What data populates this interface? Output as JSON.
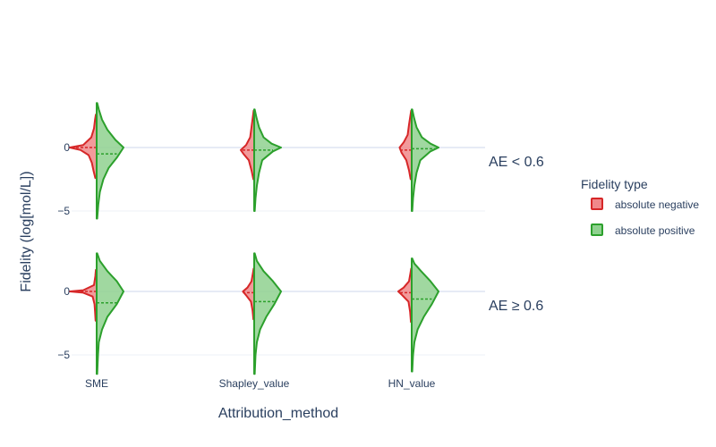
{
  "chart_data": {
    "type": "violin",
    "xlabel": "Attribution_method",
    "ylabel": "Fidelity (log[mol/L])",
    "categories": [
      "SME",
      "Shapley_value",
      "HN_value"
    ],
    "y_ticks": [
      {
        "value": 0,
        "label": "0"
      },
      {
        "value": -5,
        "label": "−5"
      }
    ],
    "facets": [
      {
        "label": "AE < 0.6",
        "ylim": [
          -5.5,
          3.5
        ]
      },
      {
        "label": "AE ≥ 0.6",
        "ylim": [
          -6.5,
          3.0
        ]
      }
    ],
    "grid": true,
    "legend": {
      "title": "Fidelity type",
      "position": "right",
      "items": [
        {
          "name": "absolute negative",
          "color": "#d62728",
          "fill": "#f0888a"
        },
        {
          "name": "absolute positive",
          "color": "#2ca02c",
          "fill": "#8fd18f"
        }
      ]
    },
    "series": [
      {
        "name": "absolute negative",
        "side": "negative",
        "color": "#d62728",
        "violins": [
          {
            "facet": 0,
            "category": "SME",
            "min": -2.4,
            "max": 2.6,
            "mean": 0.0,
            "density": [
              [
                -2.4,
                0.05
              ],
              [
                -1.8,
                0.12
              ],
              [
                -1.2,
                0.18
              ],
              [
                -0.6,
                0.3
              ],
              [
                -0.2,
                0.6
              ],
              [
                0,
                1.0
              ],
              [
                0.2,
                0.5
              ],
              [
                0.8,
                0.2
              ],
              [
                1.5,
                0.1
              ],
              [
                2.2,
                0.06
              ],
              [
                2.6,
                0.03
              ]
            ]
          },
          {
            "facet": 0,
            "category": "Shapley_value",
            "min": -2.5,
            "max": 2.9,
            "mean": -0.2,
            "density": [
              [
                -2.5,
                0.03
              ],
              [
                -1.8,
                0.1
              ],
              [
                -1.0,
                0.2
              ],
              [
                -0.5,
                0.4
              ],
              [
                -0.2,
                0.5
              ],
              [
                0.2,
                0.3
              ],
              [
                0.8,
                0.15
              ],
              [
                1.6,
                0.1
              ],
              [
                2.4,
                0.05
              ],
              [
                2.9,
                0.02
              ]
            ]
          },
          {
            "facet": 0,
            "category": "HN_value",
            "min": -2.5,
            "max": 2.9,
            "mean": -0.2,
            "density": [
              [
                -2.5,
                0.04
              ],
              [
                -1.8,
                0.1
              ],
              [
                -1.0,
                0.2
              ],
              [
                -0.4,
                0.38
              ],
              [
                0,
                0.45
              ],
              [
                0.4,
                0.3
              ],
              [
                1.0,
                0.15
              ],
              [
                1.8,
                0.1
              ],
              [
                2.5,
                0.05
              ],
              [
                2.9,
                0.02
              ]
            ]
          },
          {
            "facet": 1,
            "category": "SME",
            "min": -2.3,
            "max": 1.7,
            "mean": 0.0,
            "density": [
              [
                -2.3,
                0.04
              ],
              [
                -1.6,
                0.06
              ],
              [
                -1.0,
                0.08
              ],
              [
                -0.4,
                0.15
              ],
              [
                -0.1,
                0.5
              ],
              [
                0,
                1.0
              ],
              [
                0.1,
                0.5
              ],
              [
                0.5,
                0.1
              ],
              [
                1.2,
                0.05
              ],
              [
                1.7,
                0.03
              ]
            ]
          },
          {
            "facet": 1,
            "category": "Shapley_value",
            "min": -2.2,
            "max": 1.8,
            "mean": -0.1,
            "density": [
              [
                -2.2,
                0.03
              ],
              [
                -1.5,
                0.06
              ],
              [
                -0.8,
                0.12
              ],
              [
                -0.3,
                0.3
              ],
              [
                0,
                0.42
              ],
              [
                0.3,
                0.25
              ],
              [
                0.8,
                0.1
              ],
              [
                1.4,
                0.05
              ],
              [
                1.8,
                0.02
              ]
            ]
          },
          {
            "facet": 1,
            "category": "HN_value",
            "min": -2.4,
            "max": 1.8,
            "mean": -0.1,
            "density": [
              [
                -2.4,
                0.03
              ],
              [
                -1.6,
                0.06
              ],
              [
                -0.8,
                0.12
              ],
              [
                -0.3,
                0.35
              ],
              [
                0,
                0.5
              ],
              [
                0.3,
                0.3
              ],
              [
                0.8,
                0.1
              ],
              [
                1.4,
                0.05
              ],
              [
                1.8,
                0.02
              ]
            ]
          }
        ]
      },
      {
        "name": "absolute positive",
        "side": "positive",
        "color": "#2ca02c",
        "violins": [
          {
            "facet": 0,
            "category": "SME",
            "min": -5.6,
            "max": 3.5,
            "mean": -0.5,
            "density": [
              [
                -5.6,
                0.02
              ],
              [
                -4.5,
                0.06
              ],
              [
                -3.5,
                0.12
              ],
              [
                -2.5,
                0.25
              ],
              [
                -1.6,
                0.45
              ],
              [
                -0.8,
                0.75
              ],
              [
                0,
                1.0
              ],
              [
                0.6,
                0.7
              ],
              [
                1.4,
                0.4
              ],
              [
                2.2,
                0.2
              ],
              [
                3.0,
                0.08
              ],
              [
                3.5,
                0.02
              ]
            ]
          },
          {
            "facet": 0,
            "category": "Shapley_value",
            "min": -5.0,
            "max": 3.0,
            "mean": -0.2,
            "density": [
              [
                -5.0,
                0.02
              ],
              [
                -4.0,
                0.05
              ],
              [
                -3.0,
                0.1
              ],
              [
                -2.0,
                0.18
              ],
              [
                -1.0,
                0.3
              ],
              [
                -0.3,
                0.7
              ],
              [
                0,
                1.0
              ],
              [
                0.3,
                0.65
              ],
              [
                0.8,
                0.35
              ],
              [
                1.6,
                0.18
              ],
              [
                2.4,
                0.08
              ],
              [
                3.0,
                0.02
              ]
            ]
          },
          {
            "facet": 0,
            "category": "HN_value",
            "min": -5.0,
            "max": 3.0,
            "mean": -0.1,
            "density": [
              [
                -5.0,
                0.02
              ],
              [
                -4.0,
                0.05
              ],
              [
                -3.0,
                0.1
              ],
              [
                -2.0,
                0.18
              ],
              [
                -1.0,
                0.32
              ],
              [
                -0.3,
                0.7
              ],
              [
                0,
                1.0
              ],
              [
                0.3,
                0.7
              ],
              [
                0.8,
                0.38
              ],
              [
                1.6,
                0.18
              ],
              [
                2.4,
                0.08
              ],
              [
                3.0,
                0.02
              ]
            ]
          },
          {
            "facet": 1,
            "category": "SME",
            "min": -6.5,
            "max": 3.0,
            "mean": -0.9,
            "density": [
              [
                -6.5,
                0.02
              ],
              [
                -5.0,
                0.05
              ],
              [
                -4.0,
                0.08
              ],
              [
                -3.0,
                0.2
              ],
              [
                -2.0,
                0.4
              ],
              [
                -1.0,
                0.75
              ],
              [
                0,
                1.0
              ],
              [
                0.8,
                0.75
              ],
              [
                1.6,
                0.4
              ],
              [
                2.4,
                0.12
              ],
              [
                3.0,
                0.02
              ]
            ]
          },
          {
            "facet": 1,
            "category": "Shapley_value",
            "min": -6.5,
            "max": 3.0,
            "mean": -0.8,
            "density": [
              [
                -6.5,
                0.02
              ],
              [
                -5.0,
                0.05
              ],
              [
                -4.0,
                0.1
              ],
              [
                -3.0,
                0.22
              ],
              [
                -2.0,
                0.45
              ],
              [
                -1.0,
                0.75
              ],
              [
                0,
                1.0
              ],
              [
                0.8,
                0.7
              ],
              [
                1.6,
                0.35
              ],
              [
                2.4,
                0.1
              ],
              [
                3.0,
                0.02
              ]
            ]
          },
          {
            "facet": 1,
            "category": "HN_value",
            "min": -6.3,
            "max": 2.6,
            "mean": -0.6,
            "density": [
              [
                -6.3,
                0.02
              ],
              [
                -5.0,
                0.05
              ],
              [
                -4.0,
                0.1
              ],
              [
                -3.0,
                0.22
              ],
              [
                -2.0,
                0.45
              ],
              [
                -1.0,
                0.75
              ],
              [
                0,
                1.0
              ],
              [
                0.8,
                0.7
              ],
              [
                1.6,
                0.35
              ],
              [
                2.2,
                0.1
              ],
              [
                2.6,
                0.02
              ]
            ]
          }
        ]
      }
    ]
  }
}
